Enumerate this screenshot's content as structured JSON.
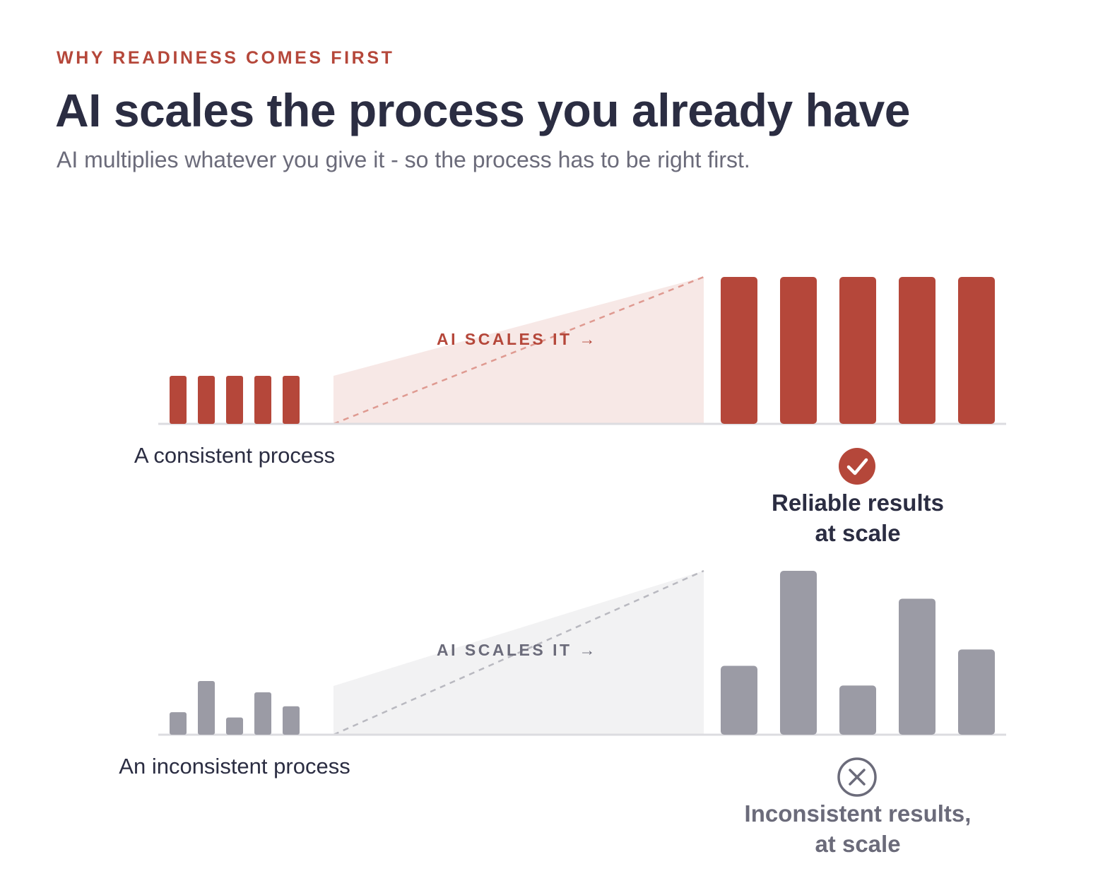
{
  "eyebrow": "WHY READINESS COMES FIRST",
  "title": "AI scales the process you already have",
  "subtitle": "AI multiplies whatever you give it - so the process has to be right first.",
  "colors": {
    "accent": "#b5473a",
    "accent_light": "#f7e8e6",
    "accent_dash": "#df9a91",
    "gray_bar": "#9b9ba5",
    "gray_light": "#f2f2f3",
    "gray_dash": "#b9b9c0",
    "baseline": "#dcdce0",
    "dark_text": "#2b2d42",
    "gray_text": "#6b6b7a"
  },
  "panels": [
    {
      "key": "consistent",
      "input_label": "A consistent process",
      "scale_label": "AI SCALES IT →",
      "input_bars": [
        1,
        1,
        1,
        1,
        1
      ],
      "output_bars": [
        1,
        1,
        1,
        1,
        1
      ],
      "outcome_icon": "check-circle-icon",
      "outcome_lines": [
        "Reliable results",
        "at scale"
      ]
    },
    {
      "key": "inconsistent",
      "input_label": "An inconsistent process",
      "scale_label": "AI SCALES IT →",
      "input_bars": [
        0.42,
        1.0,
        0.32,
        0.79,
        0.53
      ],
      "output_bars": [
        0.42,
        1.0,
        0.3,
        0.83,
        0.52
      ],
      "outcome_icon": "x-circle-icon",
      "outcome_lines": [
        "Inconsistent results,",
        "at scale"
      ]
    }
  ]
}
